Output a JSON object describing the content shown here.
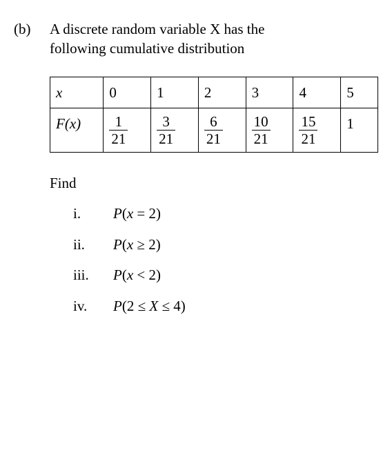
{
  "label": "(b)",
  "intro_l1": "A discrete random variable X has the",
  "intro_l2": "following cumulative distribution",
  "table": {
    "row_header_x": "x",
    "row_header_F": "F(x)",
    "columns": [
      "0",
      "1",
      "2",
      "3",
      "4",
      "5"
    ],
    "F_values": [
      {
        "type": "frac",
        "top": "1",
        "bot": "21"
      },
      {
        "type": "frac",
        "top": "3",
        "bot": "21"
      },
      {
        "type": "frac",
        "top": "6",
        "bot": "21"
      },
      {
        "type": "frac",
        "top": "10",
        "bot": "21"
      },
      {
        "type": "frac",
        "top": "15",
        "bot": "21"
      },
      {
        "type": "int",
        "value": "1"
      }
    ],
    "border_color": "#000000",
    "background_color": "#ffffff",
    "font_size_pt": 16
  },
  "find_label": "Find",
  "parts": {
    "i": {
      "label": "i.",
      "P": "P",
      "inner_var": "x",
      "inner_op": " = ",
      "inner_rhs": "2"
    },
    "ii": {
      "label": "ii.",
      "P": "P",
      "inner_var": "x",
      "inner_op": " ≥ ",
      "inner_rhs": "2"
    },
    "iii": {
      "label": "iii.",
      "P": "P",
      "inner_var": "x",
      "inner_op": " < ",
      "inner_rhs": "2"
    },
    "iv": {
      "label": "iv.",
      "P": "P",
      "inner_lhs": "2",
      "inner_op1": " ≤ ",
      "inner_mid": "X",
      "inner_op2": " ≤ ",
      "inner_rhs": "4"
    }
  },
  "colors": {
    "text": "#000000",
    "background": "#ffffff",
    "table_border": "#000000"
  }
}
